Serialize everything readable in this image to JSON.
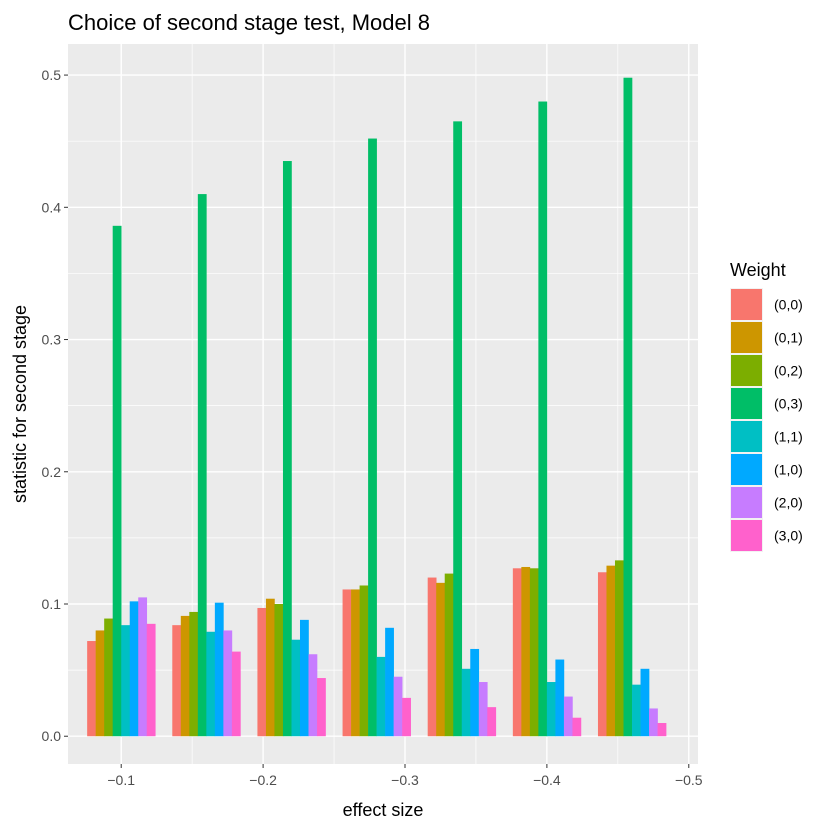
{
  "chart_data": {
    "type": "bar",
    "title": "Choice of second stage test, Model 8",
    "xlabel": "effect size",
    "ylabel": "statistic for second stage",
    "x_axis": {
      "range": [
        -0.0625,
        -0.5065
      ],
      "ticks": [
        -0.1,
        -0.2,
        -0.3,
        -0.4,
        -0.5
      ],
      "tick_labels": [
        "−0.1",
        "−0.2",
        "−0.3",
        "−0.4",
        "−0.5"
      ]
    },
    "y_axis": {
      "range": [
        -0.021,
        0.5235
      ],
      "ticks": [
        0.0,
        0.1,
        0.2,
        0.3,
        0.4,
        0.5
      ],
      "tick_labels": [
        "0.0",
        "0.1",
        "0.2",
        "0.3",
        "0.4",
        "0.5"
      ]
    },
    "group_centers": [
      -0.1,
      -0.16,
      -0.22,
      -0.28,
      -0.34,
      -0.4,
      -0.46
    ],
    "group_width": 0.048,
    "grid": true,
    "legend": {
      "title": "Weight",
      "position": "right"
    },
    "series": [
      {
        "name": "(0,0)",
        "color": "#F8766D",
        "values": [
          0.072,
          0.084,
          0.097,
          0.111,
          0.12,
          0.127,
          0.124
        ]
      },
      {
        "name": "(0,1)",
        "color": "#CD9600",
        "values": [
          0.08,
          0.091,
          0.104,
          0.111,
          0.116,
          0.128,
          0.129
        ]
      },
      {
        "name": "(0,2)",
        "color": "#7CAE00",
        "values": [
          0.089,
          0.094,
          0.1,
          0.114,
          0.123,
          0.127,
          0.133
        ]
      },
      {
        "name": "(0,3)",
        "color": "#00BE67",
        "values": [
          0.386,
          0.41,
          0.435,
          0.452,
          0.465,
          0.48,
          0.498
        ]
      },
      {
        "name": "(1,1)",
        "color": "#00BFC4",
        "values": [
          0.084,
          0.079,
          0.073,
          0.06,
          0.051,
          0.041,
          0.039
        ]
      },
      {
        "name": "(1,0)",
        "color": "#00A9FF",
        "values": [
          0.102,
          0.101,
          0.088,
          0.082,
          0.066,
          0.058,
          0.051
        ]
      },
      {
        "name": "(2,0)",
        "color": "#C77CFF",
        "values": [
          0.105,
          0.08,
          0.062,
          0.045,
          0.041,
          0.03,
          0.021
        ]
      },
      {
        "name": "(3,0)",
        "color": "#FF61CC",
        "values": [
          0.085,
          0.064,
          0.044,
          0.029,
          0.022,
          0.014,
          0.01
        ]
      }
    ]
  }
}
